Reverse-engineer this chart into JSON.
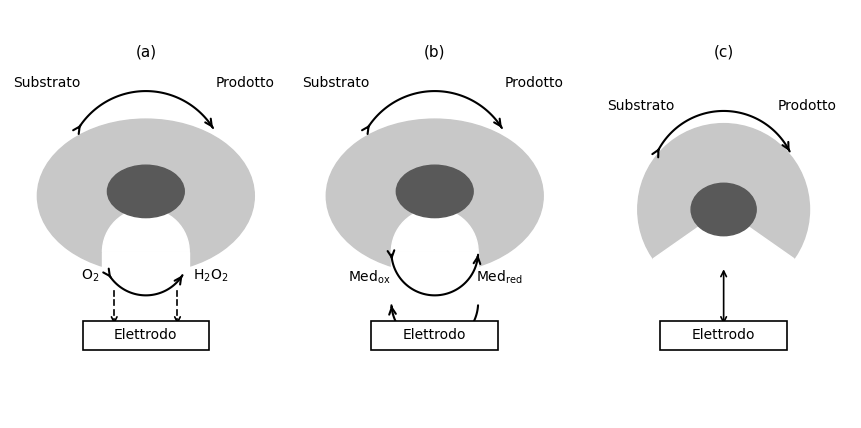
{
  "light_gray": "#c8c8c8",
  "dark_gray": "#595959",
  "white": "#ffffff",
  "black": "#000000",
  "panel_labels": [
    "(a)",
    "(b)",
    "(c)"
  ],
  "electrode_label": "Elettrodo",
  "substrate_label": "Substrato",
  "product_label": "Prodotto",
  "font_size": 10
}
